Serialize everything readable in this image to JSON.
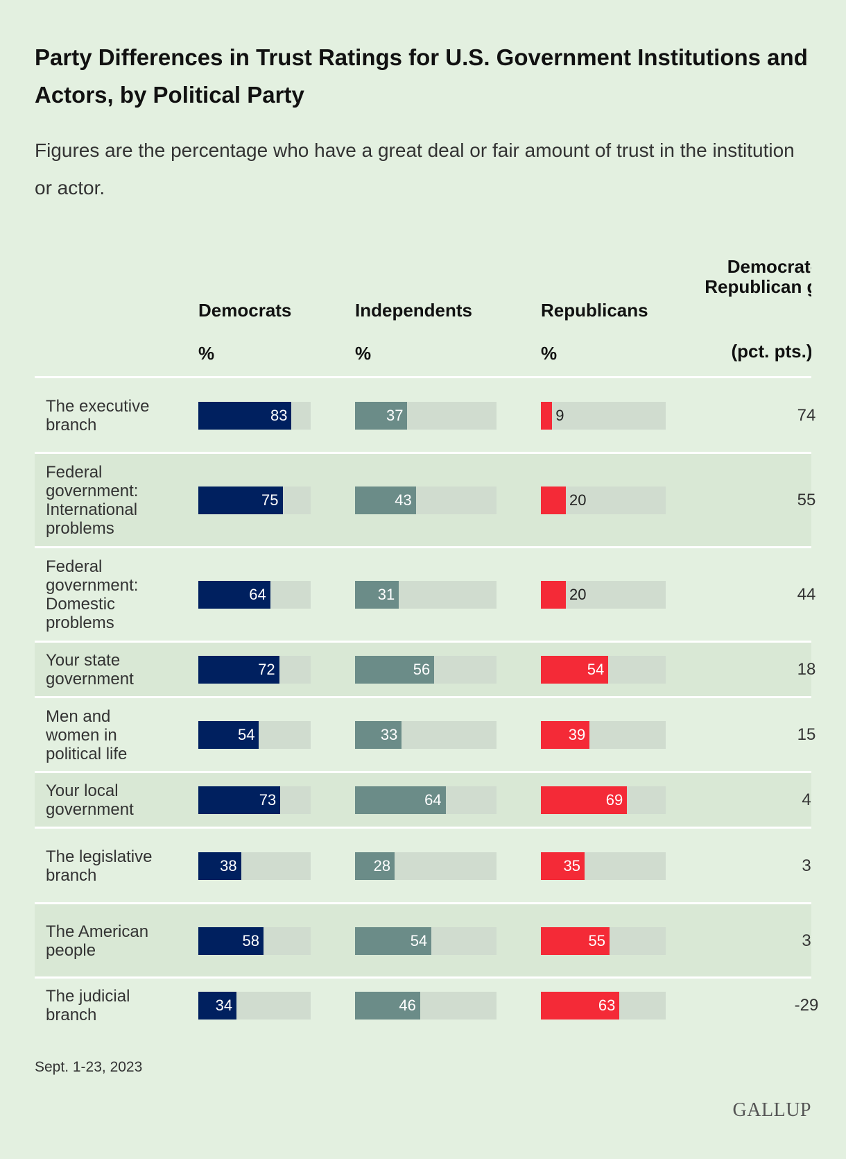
{
  "title": "Party Differences in Trust Ratings for U.S. Government Institutions and Actors, by Political Party",
  "subtitle": "Figures are the percentage who have a great deal or fair amount of trust in the institution or actor.",
  "headers": {
    "democrats": "Democrats",
    "independents": "Independents",
    "republicans": "Republicans",
    "pct": "%",
    "gap": "Democrat-Republican gap",
    "gap_unit": "(pct. pts.)"
  },
  "footer": "Sept. 1-23, 2023",
  "logo": "GALLUP",
  "colors": {
    "democrats": "#00205f",
    "independents": "#6b8c88",
    "republicans": "#f42a37",
    "track": "#d0dccf",
    "background": "#e3f0e0"
  },
  "chart_data": {
    "type": "bar",
    "title": "Party Differences in Trust Ratings for U.S. Government Institutions and Actors, by Political Party",
    "xlim": [
      0,
      100
    ],
    "categories": [
      "The executive branch",
      "Federal government: International problems",
      "Federal government: Domestic problems",
      "Your state government",
      "Men and women in political life",
      "Your local government",
      "The legislative branch",
      "The American people",
      "The judicial branch"
    ],
    "series": [
      {
        "name": "Democrats",
        "values": [
          83,
          75,
          64,
          72,
          54,
          73,
          38,
          58,
          34
        ]
      },
      {
        "name": "Independents",
        "values": [
          37,
          43,
          31,
          56,
          33,
          64,
          28,
          54,
          46
        ]
      },
      {
        "name": "Republicans",
        "values": [
          9,
          20,
          20,
          54,
          39,
          69,
          35,
          55,
          63
        ]
      }
    ],
    "gap": [
      74,
      55,
      44,
      18,
      15,
      4,
      3,
      3,
      -29
    ]
  }
}
